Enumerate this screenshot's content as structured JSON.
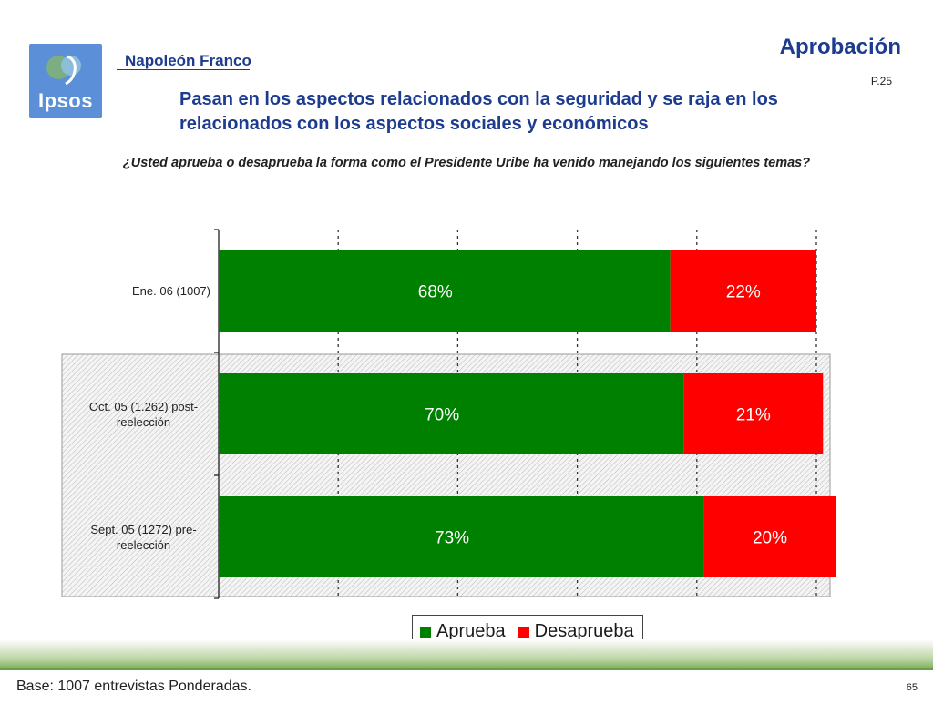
{
  "header": {
    "brand": "Napoleón Franco",
    "logo_text": "Ipsos",
    "title": "Aprobación",
    "page_ref": "P.25"
  },
  "headline": "Pasan en los aspectos relacionados con la seguridad y se raja en los relacionados con los aspectos sociales y económicos",
  "question": "¿Usted aprueba o desaprueba la forma como el Presidente Uribe ha venido manejando los siguientes temas?",
  "colors": {
    "aprueba": "#008000",
    "desaprueba": "#ff0000",
    "title": "#1d3b8f"
  },
  "chart_data": {
    "type": "bar",
    "orientation": "horizontal",
    "stacked": true,
    "categories": [
      "Ene. 06 (1007)",
      "Oct. 05 (1.262) post-reelección",
      "Sept. 05 (1272) pre-reelección"
    ],
    "series": [
      {
        "name": "Aprueba",
        "values": [
          68,
          70,
          73
        ],
        "labels": [
          "68%",
          "70%",
          "73%"
        ]
      },
      {
        "name": "Desaprueba",
        "values": [
          22,
          21,
          20
        ],
        "labels": [
          "22%",
          "21%",
          "20%"
        ]
      }
    ],
    "xlim": [
      0,
      90
    ],
    "gridlines": [
      18,
      36,
      54,
      72,
      90
    ],
    "highlighted_categories": [
      1,
      2
    ],
    "legend_position": "bottom"
  },
  "footer": {
    "base": "Base: 1007 entrevistas Ponderadas.",
    "page_number": "65"
  }
}
